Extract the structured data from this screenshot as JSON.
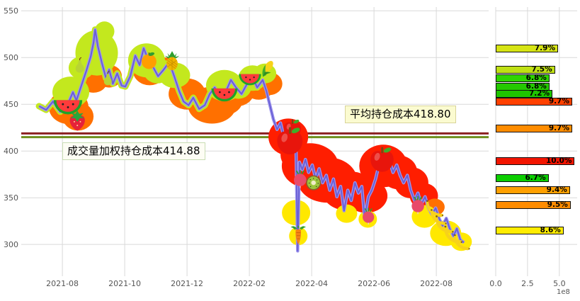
{
  "palette": {
    "grid": "#d9d9d9",
    "line": "#6a60d6",
    "line_outer": "#9f97ee",
    "avg_line": "#8b2020",
    "vwap_line": "#6f8f1f",
    "cluster_chartreuse": "#c3e81e",
    "cluster_orange": "#ff7000",
    "cluster_red": "#ff1e00",
    "cluster_yellow": "#ffe800"
  },
  "chart_data": [
    {
      "type": "line",
      "title": "price with holding-cost distribution overlay",
      "y_ticks": [
        550,
        500,
        450,
        400,
        350,
        300
      ],
      "x_ticks": [
        "2021-08",
        "2021-10",
        "2021-12",
        "2022-02",
        "2022-04",
        "2022-06",
        "2022-08"
      ],
      "x_tick_positions": [
        0,
        2,
        4,
        6,
        8,
        10,
        12
      ],
      "xlim": [
        -1.32,
        13.68
      ],
      "ylim": [
        266,
        554
      ],
      "grid": true,
      "avg_cost": {
        "label": "平均持仓成本418.80",
        "value": 418.8
      },
      "vwap_cost": {
        "label": "成交量加权持仓成本414.88",
        "value": 414.88
      },
      "series": [
        {
          "name": "price",
          "points": [
            [
              -0.75,
              448
            ],
            [
              -0.52,
              444
            ],
            [
              -0.3,
              453
            ],
            [
              -0.07,
              442
            ],
            [
              0.16,
              449
            ],
            [
              0.34,
              463
            ],
            [
              0.45,
              454
            ],
            [
              0.61,
              470
            ],
            [
              0.77,
              486
            ],
            [
              0.91,
              501
            ],
            [
              1.0,
              516
            ],
            [
              1.05,
              530
            ],
            [
              1.14,
              512
            ],
            [
              1.27,
              494
            ],
            [
              1.4,
              478
            ],
            [
              1.5,
              487
            ],
            [
              1.62,
              472
            ],
            [
              1.76,
              483
            ],
            [
              1.9,
              470
            ],
            [
              2.02,
              469
            ],
            [
              2.18,
              480
            ],
            [
              2.34,
              502
            ],
            [
              2.48,
              492
            ],
            [
              2.61,
              510
            ],
            [
              2.75,
              498
            ],
            [
              2.91,
              490
            ],
            [
              3.07,
              480
            ],
            [
              3.25,
              487
            ],
            [
              3.43,
              495
            ],
            [
              3.59,
              480
            ],
            [
              3.75,
              464
            ],
            [
              3.89,
              453
            ],
            [
              4.05,
              449
            ],
            [
              4.2,
              457
            ],
            [
              4.39,
              445
            ],
            [
              4.57,
              449
            ],
            [
              4.73,
              461
            ],
            [
              4.89,
              468
            ],
            [
              5.07,
              457
            ],
            [
              5.25,
              464
            ],
            [
              5.41,
              476
            ],
            [
              5.57,
              468
            ],
            [
              5.75,
              461
            ],
            [
              5.93,
              472
            ],
            [
              6.09,
              480
            ],
            [
              6.25,
              468
            ],
            [
              6.43,
              476
            ],
            [
              6.55,
              464
            ],
            [
              6.66,
              449
            ],
            [
              6.77,
              434
            ],
            [
              6.89,
              423
            ],
            [
              7.0,
              430
            ],
            [
              7.11,
              415
            ],
            [
              7.23,
              423
            ],
            [
              7.32,
              411
            ],
            [
              7.41,
              419
            ],
            [
              7.5,
              400
            ],
            [
              7.55,
              293
            ],
            [
              7.61,
              388
            ],
            [
              7.7,
              380
            ],
            [
              7.8,
              391
            ],
            [
              7.9,
              377
            ],
            [
              8.02,
              385
            ],
            [
              8.13,
              370
            ],
            [
              8.24,
              381
            ],
            [
              8.35,
              366
            ],
            [
              8.47,
              374
            ],
            [
              8.58,
              358
            ],
            [
              8.7,
              370
            ],
            [
              8.81,
              351
            ],
            [
              8.93,
              362
            ],
            [
              9.04,
              336
            ],
            [
              9.16,
              358
            ],
            [
              9.27,
              347
            ],
            [
              9.39,
              366
            ],
            [
              9.5,
              355
            ],
            [
              9.61,
              362
            ],
            [
              9.7,
              328
            ],
            [
              9.82,
              351
            ],
            [
              9.93,
              358
            ],
            [
              10.05,
              370
            ],
            [
              10.16,
              385
            ],
            [
              10.27,
              392
            ],
            [
              10.39,
              381
            ],
            [
              10.5,
              389
            ],
            [
              10.61,
              377
            ],
            [
              10.73,
              385
            ],
            [
              10.84,
              374
            ],
            [
              10.95,
              366
            ],
            [
              11.07,
              374
            ],
            [
              11.18,
              358
            ],
            [
              11.3,
              347
            ],
            [
              11.41,
              355
            ],
            [
              11.52,
              343
            ],
            [
              11.64,
              351
            ],
            [
              11.75,
              339
            ],
            [
              11.86,
              332
            ],
            [
              11.98,
              339
            ],
            [
              12.09,
              328
            ],
            [
              12.2,
              320
            ],
            [
              12.32,
              328
            ],
            [
              12.43,
              317
            ],
            [
              12.55,
              309
            ],
            [
              12.66,
              317
            ],
            [
              12.77,
              305
            ],
            [
              12.89,
              302
            ]
          ]
        }
      ],
      "clusters": [
        {
          "m": 0.2,
          "p": 447,
          "rx": 28,
          "ry": 24,
          "c": "orange"
        },
        {
          "m": 0.5,
          "p": 437,
          "rx": 22,
          "ry": 20,
          "c": "orange"
        },
        {
          "m": 1.0,
          "p": 476,
          "rx": 20,
          "ry": 18,
          "c": "orange"
        },
        {
          "m": 1.5,
          "p": 480,
          "rx": 18,
          "ry": 16,
          "c": "orange"
        },
        {
          "m": 2.8,
          "p": 487,
          "rx": 24,
          "ry": 22,
          "c": "orange"
        },
        {
          "m": 3.3,
          "p": 488,
          "rx": 18,
          "ry": 16,
          "c": "orange"
        },
        {
          "m": 4.0,
          "p": 461,
          "rx": 26,
          "ry": 22,
          "c": "orange"
        },
        {
          "m": 4.8,
          "p": 449,
          "rx": 34,
          "ry": 26,
          "c": "orange"
        },
        {
          "m": 5.2,
          "p": 455,
          "rx": 26,
          "ry": 22,
          "c": "orange"
        },
        {
          "m": 5.6,
          "p": 463,
          "rx": 24,
          "ry": 20,
          "c": "orange"
        },
        {
          "m": 6.3,
          "p": 470,
          "rx": 22,
          "ry": 20,
          "c": "orange"
        },
        {
          "m": 6.65,
          "p": 472,
          "rx": 18,
          "ry": 16,
          "c": "orange"
        },
        {
          "m": 0.27,
          "p": 463,
          "rx": 26,
          "ry": 22,
          "c": "chartreuse"
        },
        {
          "m": 0.61,
          "p": 489,
          "rx": 18,
          "ry": 16,
          "c": "chartreuse"
        },
        {
          "m": 1.1,
          "p": 505,
          "rx": 30,
          "ry": 32,
          "c": "chartreuse"
        },
        {
          "m": 1.35,
          "p": 528,
          "rx": 14,
          "ry": 14,
          "c": "chartreuse"
        },
        {
          "m": 2.7,
          "p": 497,
          "rx": 26,
          "ry": 24,
          "c": "chartreuse"
        },
        {
          "m": 3.05,
          "p": 486,
          "rx": 20,
          "ry": 18,
          "c": "chartreuse"
        },
        {
          "m": 3.6,
          "p": 481,
          "rx": 22,
          "ry": 18,
          "c": "chartreuse"
        },
        {
          "m": 5.2,
          "p": 470,
          "rx": 26,
          "ry": 22,
          "c": "chartreuse"
        },
        {
          "m": 5.65,
          "p": 468,
          "rx": 18,
          "ry": 16,
          "c": "chartreuse"
        },
        {
          "m": 6.1,
          "p": 478,
          "rx": 20,
          "ry": 18,
          "c": "chartreuse"
        },
        {
          "m": 6.5,
          "p": 483,
          "rx": 16,
          "ry": 14,
          "c": "chartreuse"
        },
        {
          "m": 7.25,
          "p": 415,
          "rx": 28,
          "ry": 26,
          "c": "red"
        },
        {
          "m": 7.5,
          "p": 396,
          "rx": 22,
          "ry": 22,
          "c": "red"
        },
        {
          "m": 7.95,
          "p": 384,
          "rx": 40,
          "ry": 32,
          "c": "red"
        },
        {
          "m": 8.5,
          "p": 369,
          "rx": 42,
          "ry": 32,
          "c": "red"
        },
        {
          "m": 9.2,
          "p": 357,
          "rx": 38,
          "ry": 28,
          "c": "red"
        },
        {
          "m": 9.75,
          "p": 352,
          "rx": 30,
          "ry": 24,
          "c": "red"
        },
        {
          "m": 10.3,
          "p": 384,
          "rx": 34,
          "ry": 30,
          "c": "red"
        },
        {
          "m": 10.8,
          "p": 377,
          "rx": 26,
          "ry": 24,
          "c": "red"
        },
        {
          "m": 11.2,
          "p": 366,
          "rx": 24,
          "ry": 22,
          "c": "red"
        },
        {
          "m": 11.6,
          "p": 352,
          "rx": 20,
          "ry": 18,
          "c": "red"
        },
        {
          "m": 11.95,
          "p": 340,
          "rx": 14,
          "ry": 12,
          "c": "orange"
        },
        {
          "m": 7.5,
          "p": 334,
          "rx": 20,
          "ry": 18,
          "c": "yellow"
        },
        {
          "m": 7.57,
          "p": 309,
          "rx": 13,
          "ry": 13,
          "c": "yellow"
        },
        {
          "m": 9.12,
          "p": 333,
          "rx": 15,
          "ry": 13,
          "c": "yellow"
        },
        {
          "m": 9.8,
          "p": 327,
          "rx": 13,
          "ry": 12,
          "c": "yellow"
        },
        {
          "m": 11.62,
          "p": 330,
          "rx": 18,
          "ry": 16,
          "c": "yellow"
        },
        {
          "m": 12.3,
          "p": 312,
          "rx": 22,
          "ry": 18,
          "c": "yellow"
        },
        {
          "m": 12.8,
          "p": 303,
          "rx": 15,
          "ry": 13,
          "c": "yellow"
        }
      ],
      "decorations": [
        {
          "icon": "watermelon",
          "m": 0.18,
          "p": 449,
          "s": 46
        },
        {
          "icon": "strawberry",
          "m": 0.48,
          "p": 433,
          "s": 34
        },
        {
          "icon": "pear",
          "m": 0.56,
          "p": 492,
          "s": 24
        },
        {
          "icon": "pear",
          "m": 1.46,
          "p": 478,
          "s": 22
        },
        {
          "icon": "tangerine",
          "m": 2.78,
          "p": 497,
          "s": 28
        },
        {
          "icon": "pineapple",
          "m": 3.52,
          "p": 497,
          "s": 30
        },
        {
          "icon": "watermelon",
          "m": 5.2,
          "p": 462,
          "s": 42
        },
        {
          "icon": "watermelon",
          "m": 6.02,
          "p": 478,
          "s": 36
        },
        {
          "icon": "corn",
          "m": 6.58,
          "p": 488,
          "s": 26
        },
        {
          "icon": "apple",
          "m": 7.38,
          "p": 424,
          "s": 30
        },
        {
          "icon": "apple",
          "m": 7.3,
          "p": 411,
          "s": 44
        },
        {
          "icon": "radish",
          "m": 7.63,
          "p": 371,
          "s": 28
        },
        {
          "icon": "kiwi",
          "m": 8.06,
          "p": 366,
          "s": 26
        },
        {
          "icon": "carrot",
          "m": 7.57,
          "p": 310,
          "s": 28
        },
        {
          "icon": "apple",
          "m": 10.26,
          "p": 391,
          "s": 40
        },
        {
          "icon": "radish",
          "m": 9.82,
          "p": 331,
          "s": 26
        },
        {
          "icon": "radish",
          "m": 11.41,
          "p": 343,
          "s": 28
        },
        {
          "icon": "banana",
          "m": 11.93,
          "p": 337,
          "s": 32
        },
        {
          "icon": "banana",
          "m": 12.05,
          "p": 328,
          "s": 30
        },
        {
          "icon": "banana",
          "m": 12.24,
          "p": 320,
          "s": 34
        },
        {
          "icon": "banana",
          "m": 12.52,
          "p": 309,
          "s": 34
        },
        {
          "icon": "banana",
          "m": 12.8,
          "p": 301,
          "s": 30
        }
      ]
    },
    {
      "type": "bar",
      "orientation": "horizontal",
      "x_ticks": [
        "0.0",
        "2.5",
        "5.0"
      ],
      "x_tick_values": [
        0,
        2.5,
        5
      ],
      "xlim": [
        0,
        6.4
      ],
      "axis_exponent": "1e8",
      "bars": [
        {
          "pct": "7.9%",
          "value_e8": 4.9,
          "price": 510,
          "color": "#d6e414"
        },
        {
          "pct": "7.5%",
          "value_e8": 4.65,
          "price": 487,
          "color": "#bfe014"
        },
        {
          "pct": "6.8%",
          "value_e8": 4.22,
          "price": 478,
          "color": "#2fd500"
        },
        {
          "pct": "6.8%",
          "value_e8": 4.22,
          "price": 469,
          "color": "#24c900"
        },
        {
          "pct": "7.2%",
          "value_e8": 4.46,
          "price": 461,
          "color": "#1ec400"
        },
        {
          "pct": "9.7%",
          "value_e8": 6.01,
          "price": 453,
          "color": "#ff4000"
        },
        {
          "pct": "9.7%",
          "value_e8": 6.01,
          "price": 424,
          "color": "#ff8c00"
        },
        {
          "pct": "10.0%",
          "value_e8": 6.2,
          "price": 389,
          "color": "#f21500"
        },
        {
          "pct": "6.7%",
          "value_e8": 4.15,
          "price": 371,
          "color": "#0ccf00"
        },
        {
          "pct": "9.4%",
          "value_e8": 5.83,
          "price": 358,
          "color": "#ffa000"
        },
        {
          "pct": "9.5%",
          "value_e8": 5.89,
          "price": 342,
          "color": "#ff8c00"
        },
        {
          "pct": "8.6%",
          "value_e8": 5.33,
          "price": 315,
          "color": "#ffec00"
        }
      ]
    }
  ]
}
